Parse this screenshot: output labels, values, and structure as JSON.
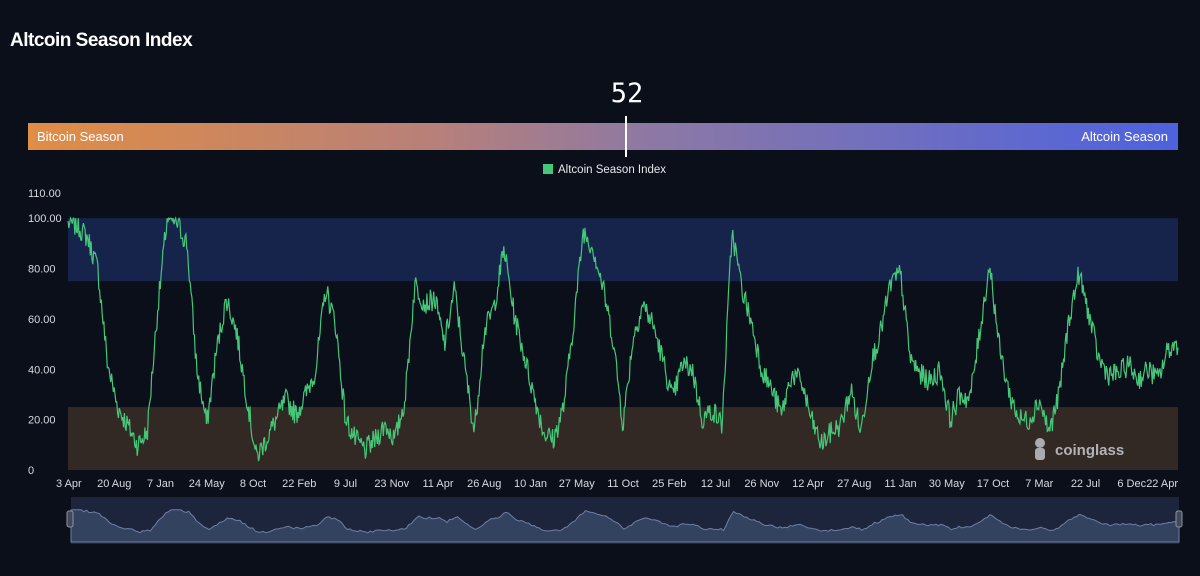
{
  "page": {
    "title": "Altcoin Season Index"
  },
  "gauge": {
    "value": "52",
    "fraction": 0.52,
    "left_label": "Bitcoin Season",
    "right_label": "Altcoin Season"
  },
  "legend": {
    "label": "Altcoin Season Index"
  },
  "colors": {
    "series": "#45c779",
    "altcoin_band": "#17264f",
    "bitcoin_band": "#352a25",
    "background": "#0b0f19"
  },
  "chart_data": {
    "type": "line",
    "title": "",
    "ylim": [
      0,
      110
    ],
    "y_ticks": [
      "0",
      "20.00",
      "40.00",
      "60.00",
      "80.00",
      "100.00",
      "110.00"
    ],
    "x_ticks": [
      "3 Apr",
      "20 Aug",
      "7 Jan",
      "24 May",
      "8 Oct",
      "22 Feb",
      "9 Jul",
      "23 Nov",
      "11 Apr",
      "26 Aug",
      "10 Jan",
      "27 May",
      "11 Oct",
      "25 Feb",
      "12 Jul",
      "26 Nov",
      "12 Apr",
      "27 Aug",
      "11 Jan",
      "30 May",
      "17 Oct",
      "7 Mar",
      "22 Jul",
      "6 Dec",
      "22 Apr"
    ],
    "bands": [
      {
        "name": "altcoin-season-zone",
        "from": 75,
        "to": 100
      },
      {
        "name": "bitcoin-season-zone",
        "from": 0,
        "to": 25
      }
    ],
    "series": [
      {
        "values": [
          98,
          97,
          92,
          80,
          42,
          25,
          18,
          10,
          15,
          62,
          100,
          98,
          90,
          40,
          18,
          48,
          68,
          55,
          30,
          5,
          12,
          20,
          28,
          22,
          30,
          40,
          72,
          58,
          20,
          12,
          8,
          12,
          18,
          12,
          28,
          74,
          66,
          68,
          50,
          72,
          42,
          15,
          55,
          65,
          88,
          62,
          46,
          30,
          15,
          12,
          25,
          58,
          95,
          88,
          72,
          52,
          18,
          52,
          66,
          58,
          44,
          28,
          42,
          40,
          20,
          24,
          18,
          95,
          72,
          58,
          40,
          32,
          22,
          38,
          35,
          20,
          10,
          15,
          18,
          32,
          15,
          42,
          55,
          74,
          78,
          44,
          38,
          35,
          40,
          20,
          30,
          28,
          55,
          82,
          48,
          30,
          20,
          20,
          28,
          15,
          30,
          60,
          78,
          62,
          44,
          38,
          38,
          42,
          36,
          40,
          36,
          48,
          50
        ]
      }
    ]
  }
}
